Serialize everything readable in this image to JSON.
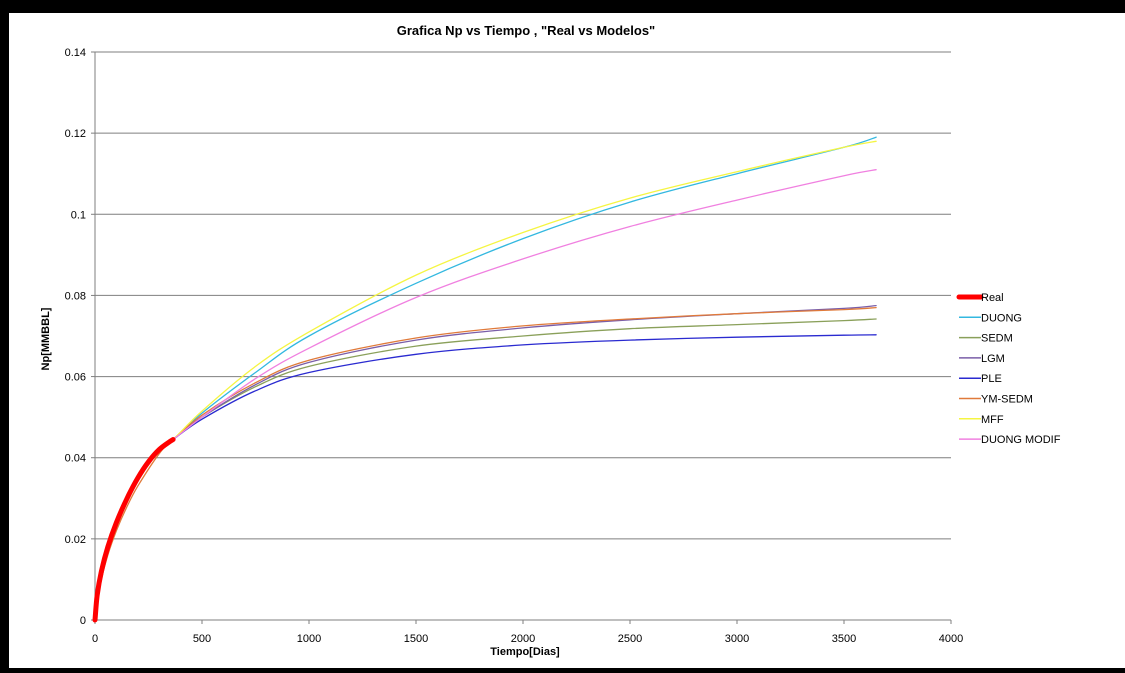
{
  "chart_data": {
    "type": "line",
    "title": "Grafica Np vs Tiempo , \"Real vs Modelos\"",
    "xlabel": "Tiempo[Dias]",
    "ylabel": "Np[MMBBL]",
    "xlim": [
      0,
      4000
    ],
    "ylim": [
      0,
      0.14
    ],
    "xticks": [
      0,
      500,
      1000,
      1500,
      2000,
      2500,
      3000,
      3500,
      4000
    ],
    "xtick_labels": [
      "0",
      "500",
      "1000",
      "1500",
      "2000",
      "2500",
      "3000",
      "3500",
      "4000"
    ],
    "yticks": [
      0,
      0.02,
      0.04,
      0.06,
      0.08,
      0.1,
      0.12,
      0.14
    ],
    "ytick_labels": [
      "0",
      "0.02",
      "0.04",
      "0.06",
      "0.08",
      "0.1",
      "0.12",
      "0.14"
    ],
    "grid": "horizontal",
    "legend_position": "right",
    "series": [
      {
        "name": "Real",
        "color": "#ff0000",
        "x": [
          0,
          10,
          30,
          60,
          100,
          150,
          200,
          250,
          300,
          350,
          365
        ],
        "y": [
          0,
          0.006,
          0.012,
          0.018,
          0.024,
          0.03,
          0.035,
          0.039,
          0.042,
          0.044,
          0.0445
        ]
      },
      {
        "name": "DUONG",
        "color": "#33b8e0",
        "x": [
          0,
          10,
          30,
          60,
          100,
          150,
          200,
          300,
          365,
          500,
          750,
          1000,
          1500,
          2000,
          2500,
          3000,
          3500,
          3650
        ],
        "y": [
          0,
          0.006,
          0.012,
          0.018,
          0.024,
          0.03,
          0.035,
          0.042,
          0.0445,
          0.051,
          0.061,
          0.07,
          0.083,
          0.094,
          0.103,
          0.11,
          0.1165,
          0.119
        ]
      },
      {
        "name": "SEDM",
        "color": "#8aa05a",
        "x": [
          0,
          10,
          30,
          60,
          100,
          150,
          200,
          300,
          365,
          500,
          750,
          1000,
          1500,
          2000,
          2500,
          3000,
          3500,
          3650
        ],
        "y": [
          0,
          0.006,
          0.012,
          0.018,
          0.024,
          0.03,
          0.035,
          0.042,
          0.0445,
          0.05,
          0.0575,
          0.0625,
          0.0675,
          0.07,
          0.0718,
          0.0728,
          0.0738,
          0.0742
        ]
      },
      {
        "name": "LGM",
        "color": "#7a5ea8",
        "x": [
          0,
          10,
          30,
          60,
          100,
          150,
          200,
          300,
          365,
          500,
          750,
          1000,
          1500,
          2000,
          2500,
          3000,
          3500,
          3650
        ],
        "y": [
          0,
          0.006,
          0.012,
          0.018,
          0.024,
          0.03,
          0.035,
          0.042,
          0.0445,
          0.05,
          0.058,
          0.0635,
          0.069,
          0.072,
          0.074,
          0.0755,
          0.0768,
          0.0775
        ]
      },
      {
        "name": "PLE",
        "color": "#2a2ad0",
        "x": [
          0,
          10,
          30,
          60,
          100,
          150,
          200,
          300,
          365,
          500,
          750,
          1000,
          1500,
          2000,
          2500,
          3000,
          3500,
          3650
        ],
        "y": [
          0,
          0.006,
          0.012,
          0.018,
          0.024,
          0.03,
          0.035,
          0.042,
          0.0445,
          0.0495,
          0.0565,
          0.061,
          0.0655,
          0.0678,
          0.069,
          0.0697,
          0.0702,
          0.0703
        ]
      },
      {
        "name": "YM-SEDM",
        "color": "#e07a3a",
        "x": [
          0,
          10,
          30,
          60,
          100,
          150,
          200,
          300,
          365,
          500,
          750,
          1000,
          1500,
          2000,
          2500,
          3000,
          3500,
          3650
        ],
        "y": [
          0,
          0.004,
          0.01,
          0.016,
          0.022,
          0.028,
          0.033,
          0.041,
          0.0445,
          0.0505,
          0.0585,
          0.064,
          0.0695,
          0.0725,
          0.0742,
          0.0755,
          0.0765,
          0.077
        ]
      },
      {
        "name": "MFF",
        "color": "#f5f542",
        "x": [
          0,
          10,
          30,
          60,
          100,
          150,
          200,
          300,
          365,
          500,
          750,
          1000,
          1500,
          2000,
          2500,
          3000,
          3500,
          3650
        ],
        "y": [
          0,
          0.006,
          0.012,
          0.018,
          0.024,
          0.03,
          0.035,
          0.042,
          0.0445,
          0.0515,
          0.0625,
          0.071,
          0.085,
          0.0955,
          0.104,
          0.1105,
          0.1165,
          0.118
        ]
      },
      {
        "name": "DUONG MODIF",
        "color": "#f080e0",
        "x": [
          0,
          10,
          30,
          60,
          100,
          150,
          200,
          300,
          365,
          500,
          750,
          1000,
          1500,
          2000,
          2500,
          3000,
          3500,
          3650
        ],
        "y": [
          0,
          0.006,
          0.012,
          0.018,
          0.024,
          0.03,
          0.035,
          0.042,
          0.0445,
          0.05,
          0.0595,
          0.067,
          0.0795,
          0.089,
          0.097,
          0.1035,
          0.1095,
          0.111
        ]
      }
    ]
  }
}
